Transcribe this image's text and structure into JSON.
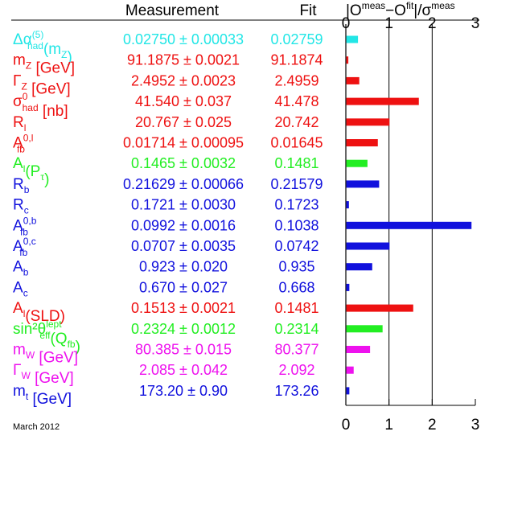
{
  "header": {
    "measurement_label": "Measurement",
    "fit_label": "Fit",
    "pull_label": "|O",
    "pull_sup1": "meas",
    "pull_mid": "−O",
    "pull_sup2": "fit",
    "pull_div": "|/σ",
    "pull_sup3": "meas"
  },
  "footnote": "March 2012",
  "colors": {
    "cyan": "#22e6e6",
    "red": "#ee1111",
    "green": "#22ee22",
    "blue": "#1111dd",
    "magenta": "#ee11ee"
  },
  "chart_data": {
    "type": "bar",
    "orientation": "horizontal",
    "xlim": [
      0,
      3
    ],
    "xticks": [
      "0",
      "1",
      "2",
      "3"
    ],
    "grid": "vertical lines at 1, 2",
    "rows": [
      {
        "name": "Δα",
        "sup": "(5)",
        "sub": "had",
        "suffix": "(m",
        "suffix_sub": "Z",
        "suffix_end": ")",
        "measurement": "0.02750 ± 0.00033",
        "fit": "0.02759",
        "pull": 0.27,
        "color": "cyan"
      },
      {
        "name": "m",
        "sup": "",
        "sub": "Z",
        "suffix": " [GeV]",
        "suffix_sub": "",
        "suffix_end": "",
        "measurement": "91.1875 ± 0.0021",
        "fit": "91.1874",
        "pull": 0.03,
        "color": "red"
      },
      {
        "name": "Γ",
        "sup": "",
        "sub": "Z",
        "suffix": " [GeV]",
        "suffix_sub": "",
        "suffix_end": "",
        "measurement": "2.4952 ± 0.0023",
        "fit": "2.4959",
        "pull": 0.3,
        "color": "red"
      },
      {
        "name": "σ",
        "sup": "0",
        "sub": "had",
        "suffix": " [nb]",
        "suffix_sub": "",
        "suffix_end": "",
        "measurement": "41.540 ± 0.037",
        "fit": "41.478",
        "pull": 1.68,
        "color": "red"
      },
      {
        "name": "R",
        "sup": "",
        "sub": "l",
        "suffix": "",
        "suffix_sub": "",
        "suffix_end": "",
        "measurement": "20.767 ± 0.025",
        "fit": "20.742",
        "pull": 1.0,
        "color": "red"
      },
      {
        "name": "A",
        "sup": "0,l",
        "sub": "fb",
        "suffix": "",
        "suffix_sub": "",
        "suffix_end": "",
        "measurement": "0.01714 ± 0.00095",
        "fit": "0.01645",
        "pull": 0.73,
        "color": "red"
      },
      {
        "name": "A",
        "sup": "",
        "sub": "l",
        "suffix": "(P",
        "suffix_sub": "τ",
        "suffix_end": ")",
        "measurement": "0.1465 ± 0.0032",
        "fit": "0.1481",
        "pull": 0.49,
        "color": "green"
      },
      {
        "name": "R",
        "sup": "",
        "sub": "b",
        "suffix": "",
        "suffix_sub": "",
        "suffix_end": "",
        "measurement": "0.21629 ± 0.00066",
        "fit": "0.21579",
        "pull": 0.76,
        "color": "blue"
      },
      {
        "name": "R",
        "sup": "",
        "sub": "c",
        "suffix": "",
        "suffix_sub": "",
        "suffix_end": "",
        "measurement": "0.1721 ± 0.0030",
        "fit": "0.1723",
        "pull": 0.06,
        "color": "blue"
      },
      {
        "name": "A",
        "sup": "0,b",
        "sub": "fb",
        "suffix": "",
        "suffix_sub": "",
        "suffix_end": "",
        "measurement": "0.0992 ± 0.0016",
        "fit": "0.1038",
        "pull": 2.9,
        "color": "blue"
      },
      {
        "name": "A",
        "sup": "0,c",
        "sub": "fb",
        "suffix": "",
        "suffix_sub": "",
        "suffix_end": "",
        "measurement": "0.0707 ± 0.0035",
        "fit": "0.0742",
        "pull": 1.0,
        "color": "blue"
      },
      {
        "name": "A",
        "sup": "",
        "sub": "b",
        "suffix": "",
        "suffix_sub": "",
        "suffix_end": "",
        "measurement": "0.923 ± 0.020",
        "fit": "0.935",
        "pull": 0.6,
        "color": "blue"
      },
      {
        "name": "A",
        "sup": "",
        "sub": "c",
        "suffix": "",
        "suffix_sub": "",
        "suffix_end": "",
        "measurement": "0.670 ± 0.027",
        "fit": "0.668",
        "pull": 0.07,
        "color": "blue"
      },
      {
        "name": "A",
        "sup": "",
        "sub": "l",
        "suffix": "(SLD)",
        "suffix_sub": "",
        "suffix_end": "",
        "measurement": "0.1513 ± 0.0021",
        "fit": "0.1481",
        "pull": 1.55,
        "color": "red"
      },
      {
        "name": "sin²θ",
        "sup": "lept",
        "sub": "eff",
        "suffix": "(Q",
        "suffix_sub": "fb",
        "suffix_end": ")",
        "measurement": "0.2324 ± 0.0012",
        "fit": "0.2314",
        "pull": 0.84,
        "color": "green"
      },
      {
        "name": "m",
        "sup": "",
        "sub": "W",
        "suffix": " [GeV]",
        "suffix_sub": "",
        "suffix_end": "",
        "measurement": "80.385 ± 0.015",
        "fit": "80.377",
        "pull": 0.55,
        "color": "magenta"
      },
      {
        "name": "Γ",
        "sup": "",
        "sub": "W",
        "suffix": " [GeV]",
        "suffix_sub": "",
        "suffix_end": "",
        "measurement": "2.085 ± 0.042",
        "fit": "2.092",
        "pull": 0.17,
        "color": "magenta"
      },
      {
        "name": "m",
        "sup": "",
        "sub": "t",
        "suffix": " [GeV]",
        "suffix_sub": "",
        "suffix_end": "",
        "measurement": "173.20 ± 0.90",
        "fit": "173.26",
        "pull": 0.07,
        "color": "blue"
      }
    ]
  }
}
